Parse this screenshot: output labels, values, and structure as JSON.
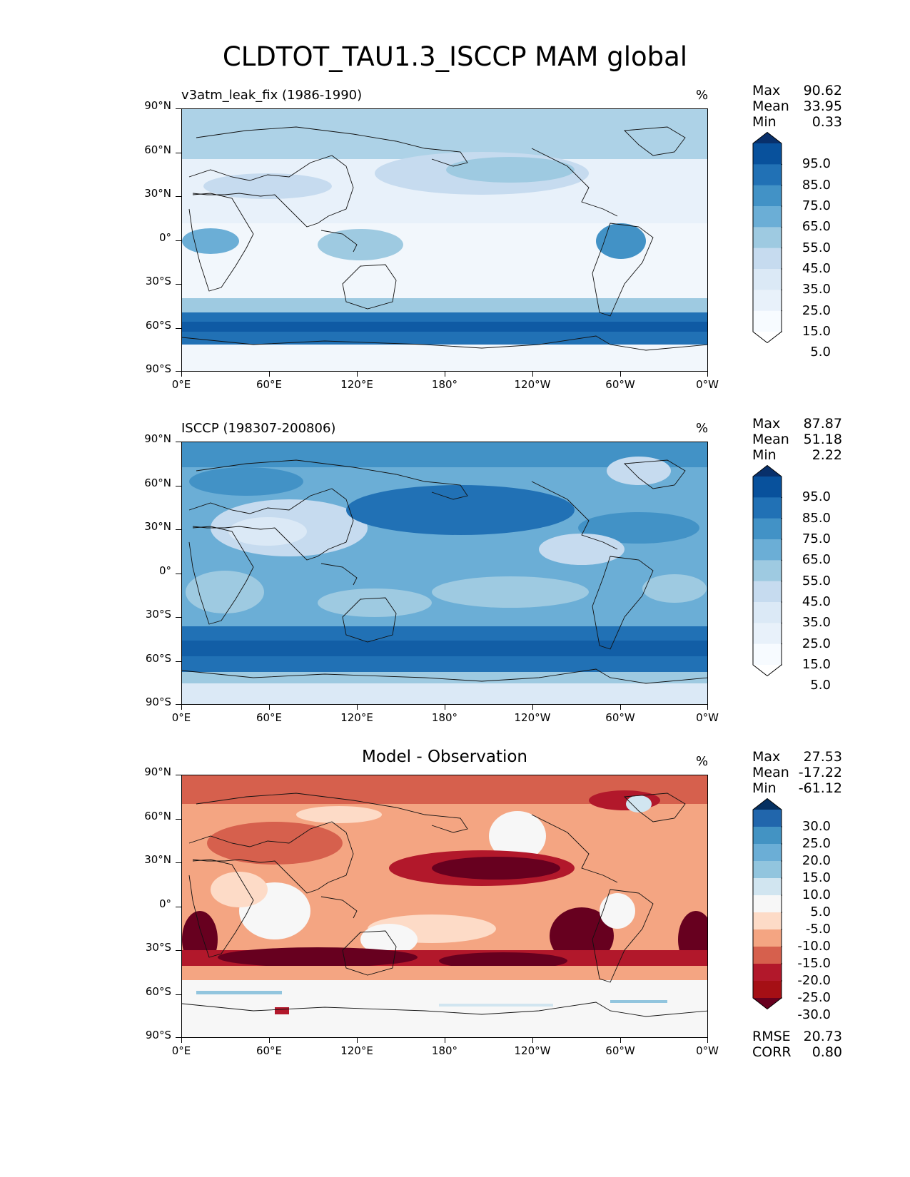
{
  "title": "CLDTOT_TAU1.3_ISCCP MAM global",
  "x_ticks": [
    "0°E",
    "60°E",
    "120°E",
    "180°",
    "120°W",
    "60°W",
    "0°W"
  ],
  "y_ticks": [
    "90°N",
    "60°N",
    "30°N",
    "0°",
    "30°S",
    "60°S",
    "90°S"
  ],
  "panels": [
    {
      "title": "v3atm_leak_fix (1986-1990)",
      "unit": "%",
      "stats": {
        "max_label": "Max",
        "max": "90.62",
        "mean_label": "Mean",
        "mean": "33.95",
        "min_label": "Min",
        "min": "0.33"
      },
      "colorbar_labels": [
        "95.0",
        "85.0",
        "75.0",
        "65.0",
        "55.0",
        "45.0",
        "35.0",
        "25.0",
        "15.0",
        "5.0"
      ],
      "colorbar_colors": [
        "#08306b",
        "#08519c",
        "#2171b5",
        "#4292c6",
        "#6baed6",
        "#9ecae1",
        "#c6dbef",
        "#dbe9f6",
        "#e8f1fa",
        "#f7fbff",
        "#ffffff"
      ]
    },
    {
      "title": "ISCCP (198307-200806)",
      "unit": "%",
      "stats": {
        "max_label": "Max",
        "max": "87.87",
        "mean_label": "Mean",
        "mean": "51.18",
        "min_label": "Min",
        "min": "2.22"
      },
      "colorbar_labels": [
        "95.0",
        "85.0",
        "75.0",
        "65.0",
        "55.0",
        "45.0",
        "35.0",
        "25.0",
        "15.0",
        "5.0"
      ],
      "colorbar_colors": [
        "#08306b",
        "#08519c",
        "#2171b5",
        "#4292c6",
        "#6baed6",
        "#9ecae1",
        "#c6dbef",
        "#dbe9f6",
        "#e8f1fa",
        "#f7fbff",
        "#ffffff"
      ]
    },
    {
      "title": "Model - Observation",
      "unit": "%",
      "stats": {
        "max_label": "Max",
        "max": "27.53",
        "mean_label": "Mean",
        "mean": "-17.22",
        "min_label": "Min",
        "min": "-61.12"
      },
      "colorbar_labels": [
        "30.0",
        "25.0",
        "20.0",
        "15.0",
        "10.0",
        "5.0",
        "-5.0",
        "-10.0",
        "-15.0",
        "-20.0",
        "-25.0",
        "-30.0"
      ],
      "colorbar_colors": [
        "#053061",
        "#2166ac",
        "#4393c3",
        "#6baed6",
        "#92c5de",
        "#d1e5f0",
        "#f7f7f7",
        "#fddbc7",
        "#f4a582",
        "#d6604d",
        "#b2182b",
        "#a50f15",
        "#67001f"
      ],
      "footer": {
        "rmse_label": "RMSE",
        "rmse": "20.73",
        "corr_label": "CORR",
        "corr": "0.80"
      }
    }
  ],
  "chart_data": [
    {
      "type": "heatmap",
      "title": "v3atm_leak_fix (1986-1990)",
      "units": "%",
      "xlim": [
        0,
        360
      ],
      "ylim": [
        -90,
        90
      ],
      "levels": [
        5,
        15,
        25,
        35,
        45,
        55,
        65,
        75,
        85,
        95
      ],
      "stats": {
        "max": 90.62,
        "mean": 33.95,
        "min": 0.33
      }
    },
    {
      "type": "heatmap",
      "title": "ISCCP (198307-200806)",
      "units": "%",
      "xlim": [
        0,
        360
      ],
      "ylim": [
        -90,
        90
      ],
      "levels": [
        5,
        15,
        25,
        35,
        45,
        55,
        65,
        75,
        85,
        95
      ],
      "stats": {
        "max": 87.87,
        "mean": 51.18,
        "min": 2.22
      }
    },
    {
      "type": "heatmap",
      "title": "Model - Observation",
      "units": "%",
      "xlim": [
        0,
        360
      ],
      "ylim": [
        -90,
        90
      ],
      "levels": [
        -30,
        -25,
        -20,
        -15,
        -10,
        -5,
        5,
        10,
        15,
        20,
        25,
        30
      ],
      "stats": {
        "max": 27.53,
        "mean": -17.22,
        "min": -61.12,
        "rmse": 20.73,
        "corr": 0.8
      }
    }
  ]
}
